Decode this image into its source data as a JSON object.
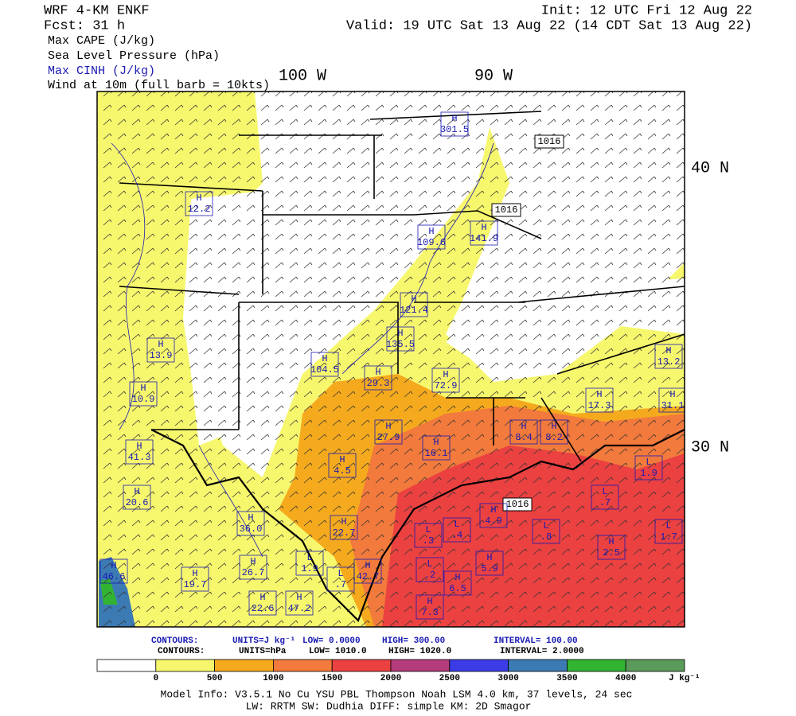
{
  "header": {
    "title": "WRF 4-KM ENKF",
    "forecast": "Fcst:   31 h",
    "init": "Init: 12 UTC Fri 12 Aug 22",
    "valid": "Valid: 19 UTC Sat 13 Aug 22 (14 CDT Sat 13 Aug 22)"
  },
  "fields": [
    "Max CAPE (J/kg)",
    "Sea Level Pressure (hPa)",
    "Max CINH (J/kg)",
    "Wind at 10m (full barb = 10kts)"
  ],
  "axis_labels": {
    "lon": [
      "100 W",
      "90 W"
    ],
    "lat": [
      "40 N",
      "30 N"
    ]
  },
  "pressure_labels": [
    "1016",
    "1016",
    "1016"
  ],
  "centers": [
    {
      "kind": "H",
      "value": "301.5"
    },
    {
      "kind": "H",
      "value": "109.6"
    },
    {
      "kind": "H",
      "value": "141.9"
    },
    {
      "kind": "H",
      "value": "121.4"
    },
    {
      "kind": "H",
      "value": "135.5"
    },
    {
      "kind": "H",
      "value": "104.5"
    },
    {
      "kind": "H",
      "value": "29.3"
    },
    {
      "kind": "H",
      "value": "72.9"
    },
    {
      "kind": "H",
      "value": "17.3"
    },
    {
      "kind": "H",
      "value": "27.9"
    },
    {
      "kind": "H",
      "value": "16.1"
    },
    {
      "kind": "H",
      "value": "8.4"
    },
    {
      "kind": "H",
      "value": "8.2"
    },
    {
      "kind": "H",
      "value": "4.5"
    },
    {
      "kind": "H",
      "value": "41.3"
    },
    {
      "kind": "H",
      "value": "20.6"
    },
    {
      "kind": "H",
      "value": "22.7"
    },
    {
      "kind": "H",
      "value": "36.0"
    },
    {
      "kind": "H",
      "value": "26.7"
    },
    {
      "kind": "H",
      "value": "19.7"
    },
    {
      "kind": "H",
      "value": "22.6"
    },
    {
      "kind": "H",
      "value": "47.2"
    },
    {
      "kind": "L",
      "value": "1.9"
    },
    {
      "kind": "L",
      "value": ".7"
    },
    {
      "kind": "H",
      "value": "42.7"
    },
    {
      "kind": "L",
      "value": ".3"
    },
    {
      "kind": "L",
      "value": ".4"
    },
    {
      "kind": "H",
      "value": "4.9"
    },
    {
      "kind": "H",
      "value": "5.9"
    },
    {
      "kind": "L",
      "value": ".2"
    },
    {
      "kind": "H",
      "value": "6.5"
    },
    {
      "kind": "H",
      "value": "7.3"
    },
    {
      "kind": "L",
      "value": ".7"
    },
    {
      "kind": "L",
      "value": ".8"
    },
    {
      "kind": "H",
      "value": "2.5"
    },
    {
      "kind": "L",
      "value": "1.7"
    },
    {
      "kind": "L",
      "value": "1.9"
    },
    {
      "kind": "H",
      "value": "13.2"
    },
    {
      "kind": "H",
      "value": "31.1"
    },
    {
      "kind": "H",
      "value": "12.2"
    },
    {
      "kind": "H",
      "value": "13.9"
    },
    {
      "kind": "H",
      "value": "10.9"
    },
    {
      "kind": "H",
      "value": "46.6"
    }
  ],
  "contours": [
    {
      "title": "CONTOURS:",
      "units": "UNITS=J kg⁻¹",
      "low": "LOW=   0.0000",
      "high": "HIGH=   300.00",
      "interval": "INTERVAL=   100.00",
      "color": "#1a1ab4"
    },
    {
      "title": "CONTOURS:",
      "units": "UNITS=hPa",
      "low": "LOW=   1010.0",
      "high": "HIGH=   1020.0",
      "interval": "INTERVAL=   2.0000",
      "color": "#000000"
    }
  ],
  "colorbar": {
    "colors": [
      "#ffffff",
      "#f7f76e",
      "#f5aa1e",
      "#f27a3c",
      "#eb4141",
      "#b43c7a",
      "#3c3ce6",
      "#3c7ab4",
      "#32b432",
      "#5a9a5a"
    ],
    "ticks": [
      0,
      500,
      1000,
      1500,
      2000,
      2500,
      3000,
      3500,
      4000
    ],
    "unit": "J kg⁻¹"
  },
  "footer": [
    "Model Info: V3.5.1   No Cu   YSU PBL  Thompson    Noah LSM  4.0 km,  37 levels,   24 sec",
    "LW: RRTM  SW: Dudhia  DIFF: simple  KM: 2D Smagor"
  ]
}
